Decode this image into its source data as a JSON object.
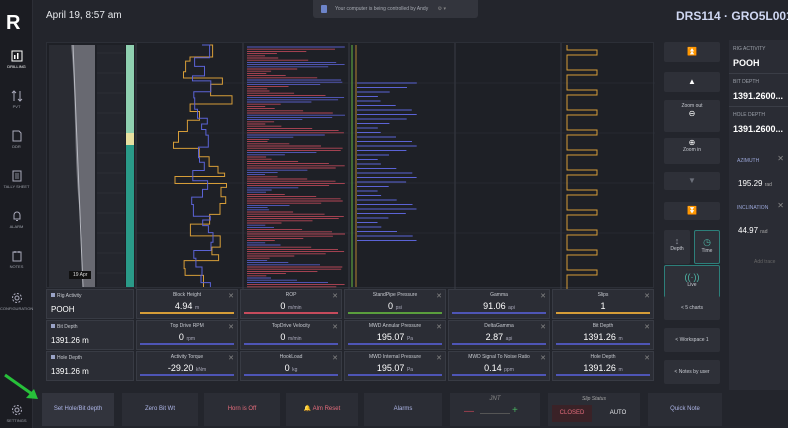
{
  "header": {
    "datetime": "April 19, 8:57 am",
    "banner": "Your computer is being controlled by Andy",
    "well": "DRS114 · GRO5L001"
  },
  "nav": {
    "items": [
      {
        "label": "DRILLING"
      },
      {
        "label": "PVT"
      },
      {
        "label": "DDR"
      },
      {
        "label": "TALLY SHEET"
      },
      {
        "label": "ALARM"
      },
      {
        "label": "NOTES"
      },
      {
        "label": "CONFIGURATION"
      },
      {
        "label": "SETTINGS"
      }
    ]
  },
  "chart": {
    "date_tag": "19 Apr"
  },
  "tiles": {
    "rig_activity": {
      "label": "Rig Activity",
      "value": "POOH"
    },
    "bit_depth": {
      "label": "Bit Depth",
      "value": "1391.26 m"
    },
    "hole_depth": {
      "label": "Hole Depth",
      "value": "1391.26 m"
    },
    "row1": [
      {
        "label": "Block Height",
        "value": "4.94",
        "unit": "m",
        "color": "o"
      },
      {
        "label": "ROP",
        "value": "0",
        "unit": "m/min",
        "color": "r"
      },
      {
        "label": "StandPipe Pressure",
        "value": "0",
        "unit": "psi",
        "color": "g"
      },
      {
        "label": "Gamma",
        "value": "91.06",
        "unit": "api",
        "color": "b"
      },
      {
        "label": "Slips",
        "value": "1",
        "unit": "",
        "color": "o"
      }
    ],
    "row2": [
      {
        "label": "Top Drive RPM",
        "value": "0",
        "unit": "rpm",
        "color": "b"
      },
      {
        "label": "TopDrive Velocity",
        "value": "0",
        "unit": "m/min",
        "color": "b"
      },
      {
        "label": "MWD Annular Pressure",
        "value": "195.07",
        "unit": "Pa",
        "color": "b"
      },
      {
        "label": "DeltaGamma",
        "value": "2.87",
        "unit": "api",
        "color": "b"
      },
      {
        "label": "Bit Depth",
        "value": "1391.26",
        "unit": "m",
        "color": "b"
      }
    ],
    "row3": [
      {
        "label": "Activity Torque",
        "value": "-29.20",
        "unit": "kNm",
        "color": "b"
      },
      {
        "label": "HookLoad",
        "value": "0",
        "unit": "kg",
        "color": "b"
      },
      {
        "label": "MWD Internal Pressure",
        "value": "195.07",
        "unit": "Pa",
        "color": "b"
      },
      {
        "label": "MWD Signal To Noise Ratio",
        "value": "0.14",
        "unit": "ppm",
        "color": "b"
      },
      {
        "label": "Hole Depth",
        "value": "1391.26",
        "unit": "m",
        "color": "b"
      }
    ]
  },
  "controls": {
    "zoom_out": "Zoom out",
    "zoom_in": "Zoom in",
    "depth": "Depth",
    "time": "Time",
    "live": "Live",
    "charts": "< 5 charts",
    "workspace": "< Workspace 1",
    "notes": "< Notes by user"
  },
  "side": {
    "rig_activity_label": "RIG ACTIVITY",
    "rig_activity": "POOH",
    "bit_depth_label": "BIT DEPTH",
    "bit_depth": "1391.2600...",
    "hole_depth_label": "HOLE DEPTH",
    "hole_depth": "1391.2600...",
    "azimuth_label": "AZIMUTH",
    "azimuth": "195.29",
    "azimuth_unit": "rad",
    "inclination_label": "INCLINATION",
    "inclination": "44.97",
    "inclination_unit": "rad",
    "add_trace": "Add trace"
  },
  "bottom": {
    "set_hole": "Set Hole/Bit depth",
    "zero_bit": "Zero Bit Wt",
    "horn": "Horn is Off",
    "alm_reset": "Alm Reset",
    "alarms": "Alarms",
    "jnt": "JNT",
    "minus": "—",
    "plus": "+",
    "slip_status": "Slip Status",
    "closed": "CLOSED",
    "auto": "AUTO",
    "quick_note": "Quick Note"
  },
  "colors": {
    "orange": "#d69d38",
    "blue": "#5b63d6",
    "red": "#c64b5c",
    "green": "#5a9e3d",
    "teal": "#2a9a88",
    "arrow": "#27c03a"
  }
}
